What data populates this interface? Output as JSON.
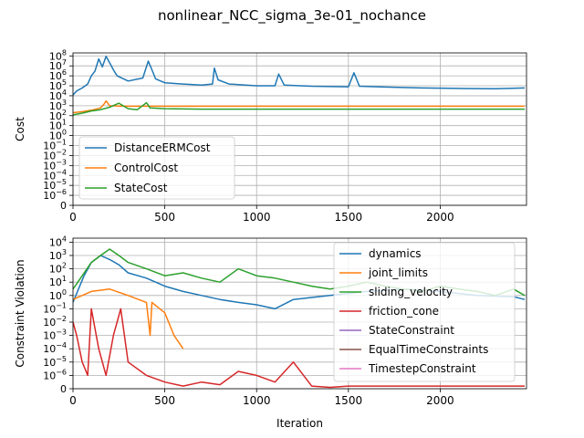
{
  "suptitle": "nonlinear_NCC_sigma_3e-01_nochance",
  "chart_data": [
    {
      "type": "line",
      "ylabel": "Cost",
      "xlabel": "",
      "yscale": "symlog",
      "xlim": [
        0,
        2470
      ],
      "ylim": [
        0,
        200000000
      ],
      "xticks": [
        0,
        500,
        1000,
        1500,
        2000
      ],
      "xtick_labels": [
        "0",
        "500",
        "1000",
        "1500",
        "2000"
      ],
      "yticks": [
        {
          "base": "10",
          "exp": "8",
          "zero": false
        },
        {
          "base": "10",
          "exp": "7",
          "zero": false
        },
        {
          "base": "10",
          "exp": "6",
          "zero": false
        },
        {
          "base": "10",
          "exp": "5",
          "zero": false
        },
        {
          "base": "10",
          "exp": "4",
          "zero": false
        },
        {
          "base": "10",
          "exp": "3",
          "zero": false
        },
        {
          "base": "10",
          "exp": "2",
          "zero": false
        },
        {
          "base": "10",
          "exp": "1",
          "zero": false
        },
        {
          "base": "10",
          "exp": "0",
          "zero": false
        },
        {
          "base": "10",
          "exp": "−1",
          "zero": false
        },
        {
          "base": "10",
          "exp": "−2",
          "zero": false
        },
        {
          "base": "10",
          "exp": "−3",
          "zero": false
        },
        {
          "base": "10",
          "exp": "−4",
          "zero": false
        },
        {
          "base": "10",
          "exp": "−5",
          "zero": false
        },
        {
          "base": "10",
          "exp": "−6",
          "zero": false
        },
        {
          "base": "0",
          "exp": "",
          "zero": true
        }
      ],
      "legend_position": "lower-left",
      "grid": true,
      "series": [
        {
          "name": "DistanceERMCost",
          "color": "#1f77b4",
          "points": [
            [
              0,
              12000
            ],
            [
              20,
              30000
            ],
            [
              50,
              60000
            ],
            [
              80,
              150000
            ],
            [
              100,
              1000000
            ],
            [
              120,
              3000000
            ],
            [
              140,
              50000000
            ],
            [
              160,
              8000000
            ],
            [
              180,
              90000000
            ],
            [
              200,
              20000000
            ],
            [
              220,
              4000000
            ],
            [
              240,
              1000000
            ],
            [
              300,
              300000
            ],
            [
              380,
              600000
            ],
            [
              410,
              30000000
            ],
            [
              430,
              4000000
            ],
            [
              450,
              500000
            ],
            [
              500,
              200000
            ],
            [
              600,
              150000
            ],
            [
              700,
              120000
            ],
            [
              760,
              150000
            ],
            [
              770,
              6000000
            ],
            [
              790,
              400000
            ],
            [
              850,
              150000
            ],
            [
              1000,
              100000
            ],
            [
              1100,
              100000
            ],
            [
              1120,
              1500000
            ],
            [
              1150,
              120000
            ],
            [
              1300,
              90000
            ],
            [
              1500,
              80000
            ],
            [
              1530,
              2000000
            ],
            [
              1560,
              90000
            ],
            [
              1700,
              75000
            ],
            [
              1900,
              60000
            ],
            [
              2100,
              55000
            ],
            [
              2300,
              50000
            ],
            [
              2460,
              60000
            ]
          ]
        },
        {
          "name": "ControlCost",
          "color": "#ff7f0e",
          "points": [
            [
              0,
              200
            ],
            [
              50,
              250
            ],
            [
              100,
              350
            ],
            [
              150,
              600
            ],
            [
              170,
              1500
            ],
            [
              180,
              3000
            ],
            [
              200,
              1000
            ],
            [
              300,
              900
            ],
            [
              500,
              900
            ],
            [
              1000,
              900
            ],
            [
              1500,
              900
            ],
            [
              2000,
              900
            ],
            [
              2460,
              900
            ]
          ]
        },
        {
          "name": "StateCost",
          "color": "#2ca02c",
          "points": [
            [
              0,
              120
            ],
            [
              50,
              180
            ],
            [
              100,
              300
            ],
            [
              150,
              400
            ],
            [
              200,
              700
            ],
            [
              250,
              1800
            ],
            [
              300,
              500
            ],
            [
              350,
              400
            ],
            [
              400,
              2000
            ],
            [
              420,
              600
            ],
            [
              500,
              500
            ],
            [
              700,
              450
            ],
            [
              1000,
              450
            ],
            [
              1200,
              450
            ],
            [
              1500,
              450
            ],
            [
              2000,
              450
            ],
            [
              2460,
              450
            ]
          ]
        }
      ]
    },
    {
      "type": "line",
      "ylabel": "Constraint Violation",
      "xlabel": "Iteration",
      "yscale": "symlog",
      "xlim": [
        0,
        2470
      ],
      "ylim": [
        0,
        20000
      ],
      "xticks": [
        0,
        500,
        1000,
        1500,
        2000
      ],
      "xtick_labels": [
        "0",
        "500",
        "1000",
        "1500",
        "2000"
      ],
      "yticks": [
        {
          "base": "10",
          "exp": "4",
          "zero": false
        },
        {
          "base": "10",
          "exp": "3",
          "zero": false
        },
        {
          "base": "10",
          "exp": "2",
          "zero": false
        },
        {
          "base": "10",
          "exp": "1",
          "zero": false
        },
        {
          "base": "10",
          "exp": "0",
          "zero": false
        },
        {
          "base": "10",
          "exp": "−1",
          "zero": false
        },
        {
          "base": "10",
          "exp": "−2",
          "zero": false
        },
        {
          "base": "10",
          "exp": "−3",
          "zero": false
        },
        {
          "base": "10",
          "exp": "−4",
          "zero": false
        },
        {
          "base": "10",
          "exp": "−5",
          "zero": false
        },
        {
          "base": "10",
          "exp": "−6",
          "zero": false
        },
        {
          "base": "0",
          "exp": "",
          "zero": true
        }
      ],
      "legend_position": "right",
      "grid": true,
      "series": [
        {
          "name": "dynamics",
          "color": "#1f77b4",
          "points": [
            [
              0,
              0.3
            ],
            [
              30,
              3
            ],
            [
              60,
              30
            ],
            [
              100,
              300
            ],
            [
              150,
              1000
            ],
            [
              200,
              500
            ],
            [
              250,
              200
            ],
            [
              300,
              50
            ],
            [
              400,
              20
            ],
            [
              500,
              5
            ],
            [
              600,
              2
            ],
            [
              700,
              1
            ],
            [
              800,
              0.5
            ],
            [
              900,
              0.3
            ],
            [
              1000,
              0.2
            ],
            [
              1100,
              0.1
            ],
            [
              1200,
              0.5
            ],
            [
              1400,
              1
            ],
            [
              1600,
              2
            ],
            [
              1800,
              3
            ],
            [
              2000,
              2
            ],
            [
              2200,
              1
            ],
            [
              2400,
              0.8
            ],
            [
              2460,
              0.5
            ]
          ]
        },
        {
          "name": "joint_limits",
          "color": "#ff7f0e",
          "points": [
            [
              0,
              0.5
            ],
            [
              100,
              2
            ],
            [
              200,
              3
            ],
            [
              300,
              1
            ],
            [
              400,
              0.3
            ],
            [
              420,
              0.001
            ],
            [
              430,
              0.3
            ],
            [
              500,
              0.05
            ],
            [
              550,
              0.001
            ],
            [
              600,
              0.0001
            ]
          ]
        },
        {
          "name": "sliding_velocity",
          "color": "#2ca02c",
          "points": [
            [
              0,
              3
            ],
            [
              50,
              30
            ],
            [
              100,
              300
            ],
            [
              150,
              1000
            ],
            [
              200,
              3000
            ],
            [
              250,
              1000
            ],
            [
              300,
              300
            ],
            [
              400,
              100
            ],
            [
              500,
              30
            ],
            [
              600,
              50
            ],
            [
              700,
              20
            ],
            [
              800,
              10
            ],
            [
              900,
              100
            ],
            [
              1000,
              30
            ],
            [
              1100,
              20
            ],
            [
              1200,
              10
            ],
            [
              1300,
              5
            ],
            [
              1400,
              3
            ],
            [
              1500,
              5
            ],
            [
              1600,
              10
            ],
            [
              1700,
              5
            ],
            [
              1800,
              3
            ],
            [
              1900,
              2
            ],
            [
              2000,
              5
            ],
            [
              2100,
              3
            ],
            [
              2200,
              2
            ],
            [
              2300,
              1
            ],
            [
              2400,
              3
            ],
            [
              2460,
              1
            ]
          ]
        },
        {
          "name": "friction_cone",
          "color": "#d62728",
          "points": [
            [
              0,
              0.01
            ],
            [
              20,
              0.001
            ],
            [
              50,
              1e-05
            ],
            [
              80,
              1e-06
            ],
            [
              100,
              0.1
            ],
            [
              140,
              0.0001
            ],
            [
              180,
              1e-06
            ],
            [
              220,
              0.001
            ],
            [
              260,
              0.1
            ],
            [
              300,
              1e-05
            ],
            [
              400,
              1e-06
            ],
            [
              500,
              5e-07
            ],
            [
              600,
              2e-07
            ],
            [
              700,
              5e-07
            ],
            [
              800,
              3e-07
            ],
            [
              900,
              2e-06
            ],
            [
              1000,
              1e-06
            ],
            [
              1100,
              5e-07
            ],
            [
              1200,
              1e-05
            ],
            [
              1300,
              2e-07
            ],
            [
              1400,
              1e-07
            ],
            [
              1500,
              2e-07
            ],
            [
              1700,
              2e-07
            ],
            [
              1900,
              2e-07
            ],
            [
              2100,
              2e-07
            ],
            [
              2300,
              2e-07
            ],
            [
              2460,
              2e-07
            ]
          ]
        },
        {
          "name": "StateConstraint",
          "color": "#9467bd",
          "points": []
        },
        {
          "name": "EqualTimeConstraints",
          "color": "#8c564b",
          "points": []
        },
        {
          "name": "TimestepConstraint",
          "color": "#e377c2",
          "points": []
        }
      ]
    }
  ]
}
